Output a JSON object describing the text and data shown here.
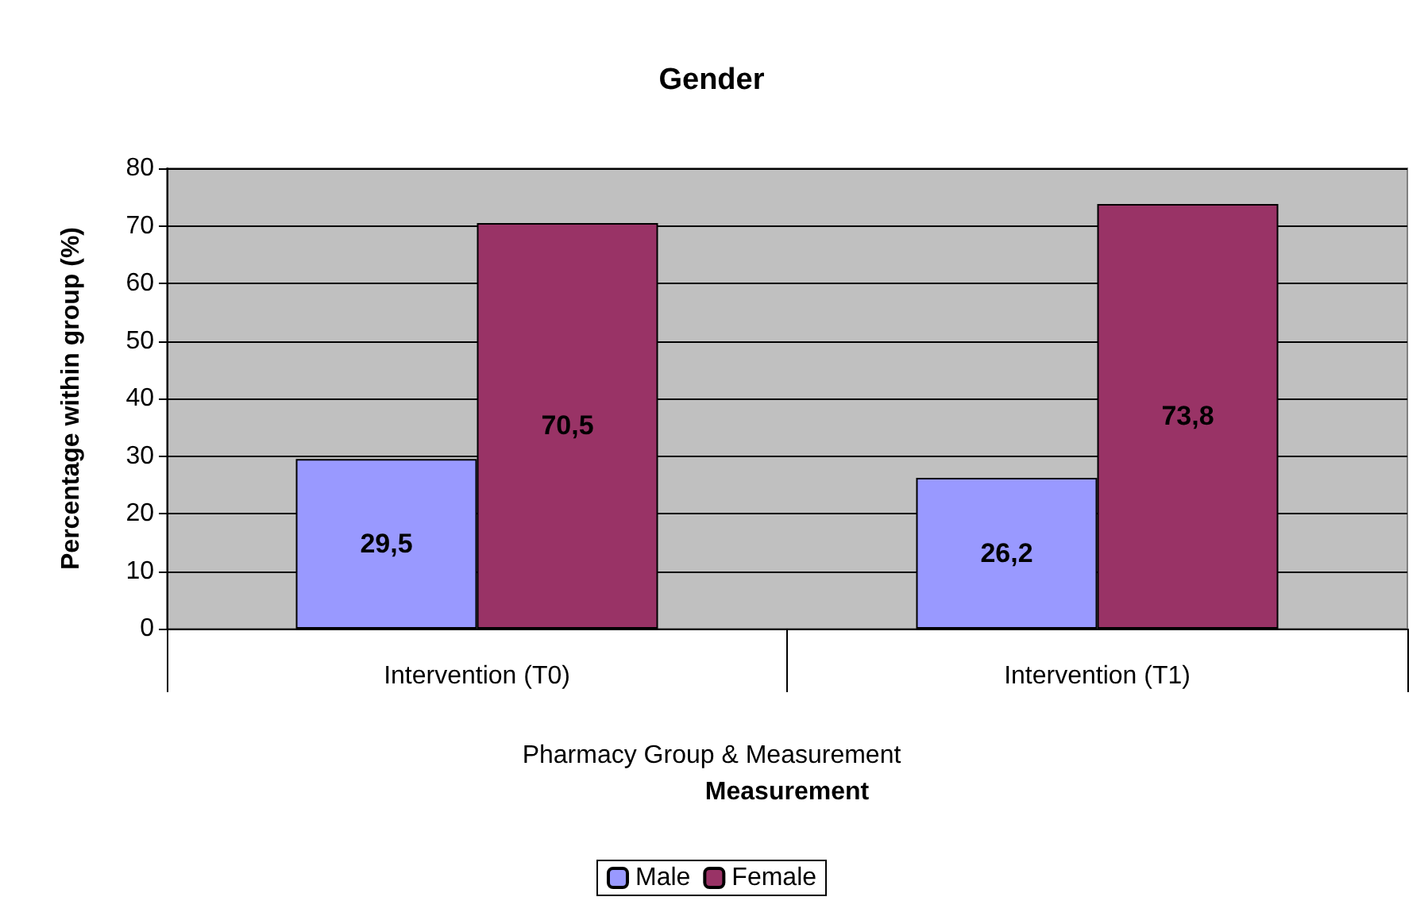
{
  "chart_data": {
    "type": "bar",
    "title": "Gender",
    "xlabel": "Measurement",
    "ylabel": "Percentage within group (%)",
    "categories": [
      "Intervention (T0)",
      "Intervention (T1)"
    ],
    "series": [
      {
        "name": "Male",
        "color": "#9999ff",
        "values": [
          29.5,
          26.2
        ],
        "value_labels": [
          "29,5",
          "26,2"
        ]
      },
      {
        "name": "Female",
        "color": "#993366",
        "values": [
          70.5,
          73.8
        ],
        "value_labels": [
          "70,5",
          "73,8"
        ]
      }
    ],
    "annotations": [
      "Pharmacy Group & Measurement"
    ],
    "ylim": [
      0,
      80
    ],
    "yticks": [
      0,
      10,
      20,
      30,
      40,
      50,
      60,
      70,
      80
    ],
    "grid": "y",
    "legend": "bottom"
  }
}
